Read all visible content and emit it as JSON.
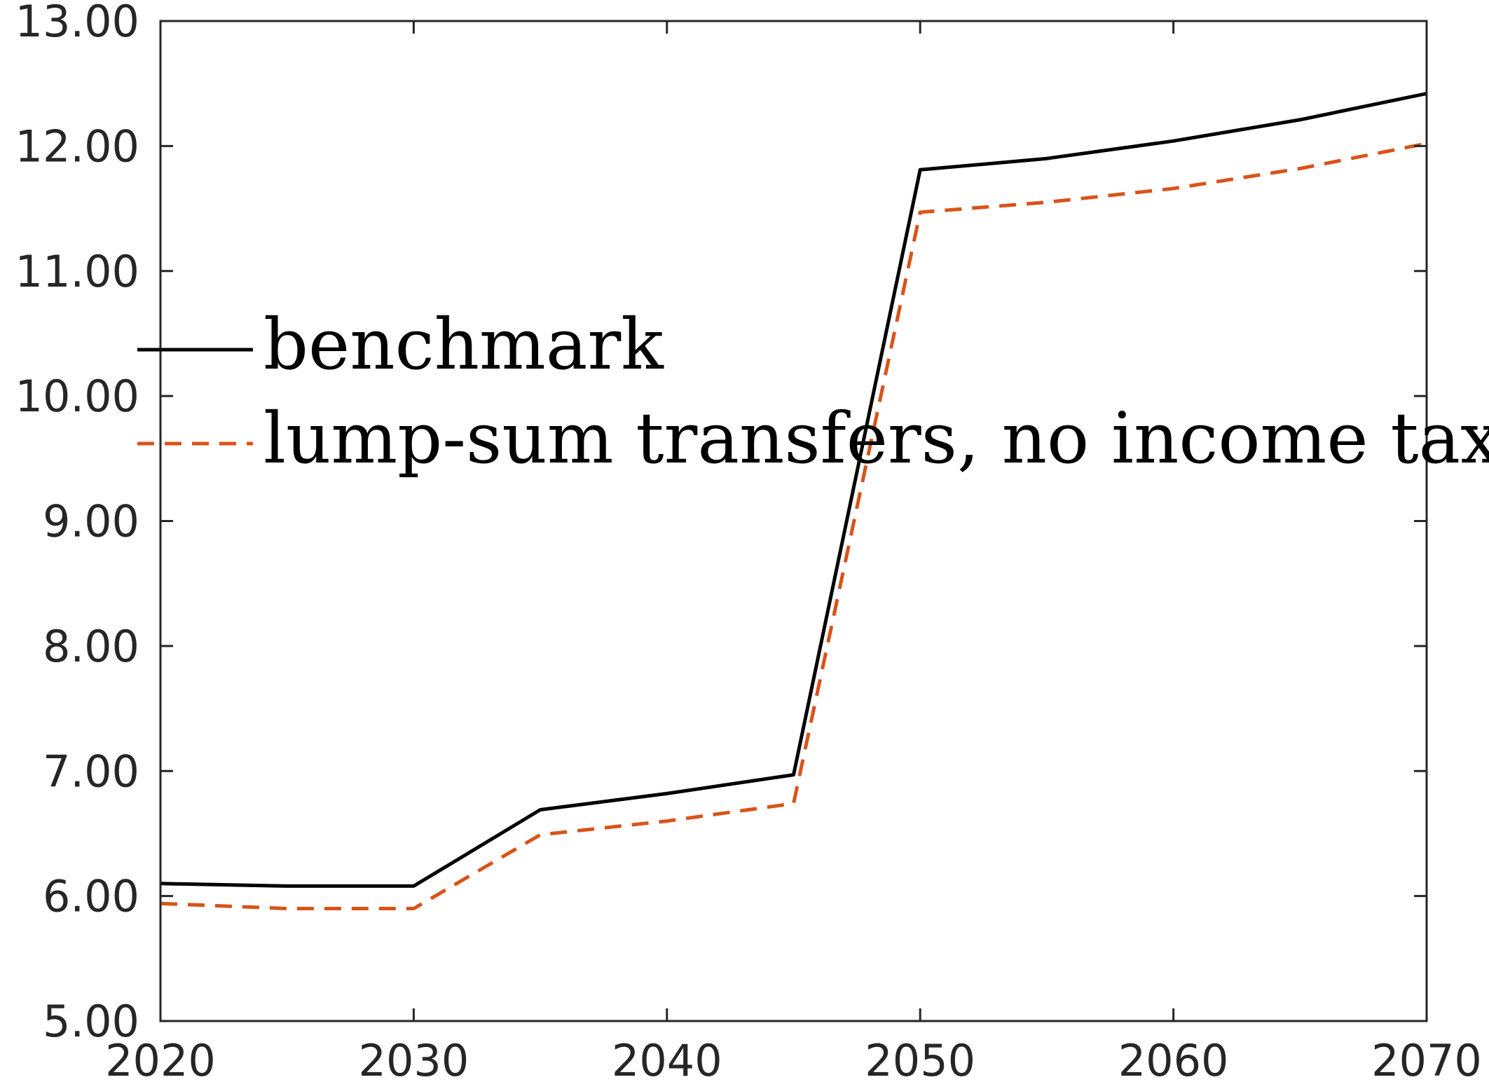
{
  "chart_data": {
    "type": "line",
    "title": "",
    "xlabel": "",
    "ylabel": "",
    "xlim": [
      2020,
      2070
    ],
    "ylim": [
      5,
      13
    ],
    "xticks": [
      2020,
      2030,
      2040,
      2050,
      2060,
      2070
    ],
    "xtick_labels": [
      "2020",
      "2030",
      "2040",
      "2050",
      "2060",
      "2070"
    ],
    "yticks": [
      5,
      6,
      7,
      8,
      9,
      10,
      11,
      12,
      13
    ],
    "ytick_labels": [
      "5.00",
      "6.00",
      "7.00",
      "8.00",
      "9.00",
      "10.00",
      "11.00",
      "12.00",
      "13.00"
    ],
    "grid": false,
    "legend_position": "center-left",
    "x": [
      2020,
      2025,
      2030,
      2035,
      2040,
      2045,
      2050,
      2055,
      2060,
      2065,
      2070
    ],
    "series": [
      {
        "name": "benchmark",
        "color": "#000000",
        "style": "solid",
        "values": [
          6.1,
          6.08,
          6.08,
          6.69,
          6.82,
          6.97,
          11.81,
          11.9,
          12.04,
          12.21,
          12.42
        ]
      },
      {
        "name": "lump-sum transfers, no income tax",
        "color": "#D95319",
        "style": "dashed",
        "values": [
          5.94,
          5.9,
          5.9,
          6.49,
          6.6,
          6.74,
          11.47,
          11.55,
          11.66,
          11.82,
          12.02
        ]
      }
    ]
  }
}
